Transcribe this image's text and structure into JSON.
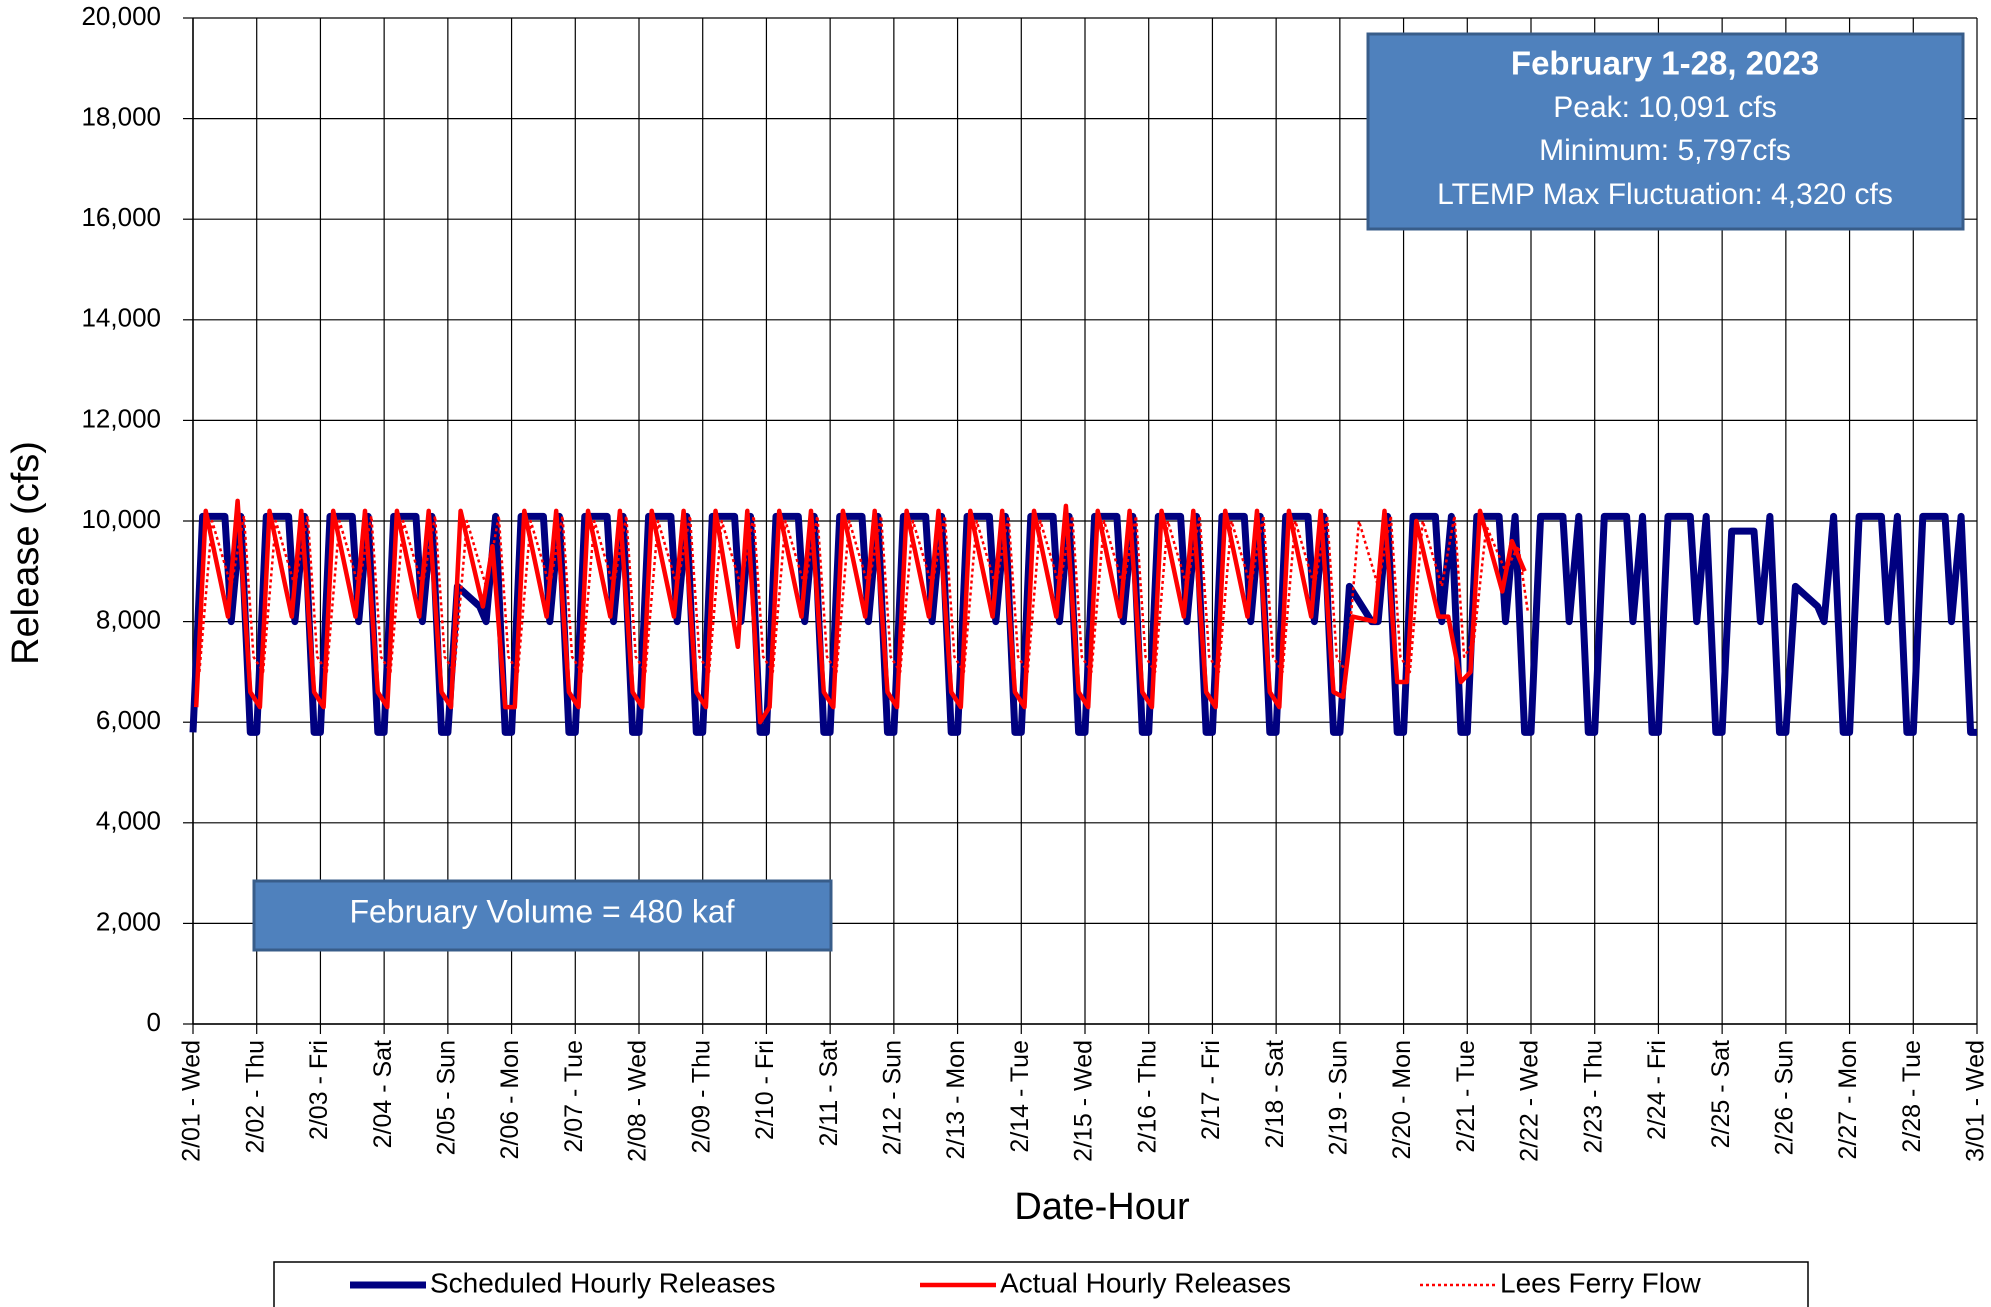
{
  "chart_data": {
    "type": "line",
    "y_label": "Release (cfs)",
    "x_label": "Date-Hour",
    "annotations": [
      "February 1-28, 2023",
      "Peak: 10,091 cfs",
      "Minimum: 5,797cfs",
      "LTEMP Max Fluctuation: 4,320 cfs",
      "February Volume = 480 kaf"
    ],
    "xlim": [
      0,
      28
    ],
    "ylim": [
      0,
      20000
    ],
    "grid": true,
    "xticks": [
      {
        "value": 0,
        "label": "2/01 - Wed"
      },
      {
        "value": 1,
        "label": "2/02 - Thu"
      },
      {
        "value": 2,
        "label": "2/03 - Fri"
      },
      {
        "value": 3,
        "label": "2/04 - Sat"
      },
      {
        "value": 4,
        "label": "2/05 - Sun"
      },
      {
        "value": 5,
        "label": "2/06 - Mon"
      },
      {
        "value": 6,
        "label": "2/07 - Tue"
      },
      {
        "value": 7,
        "label": "2/08 - Wed"
      },
      {
        "value": 8,
        "label": "2/09 - Thu"
      },
      {
        "value": 9,
        "label": "2/10 - Fri"
      },
      {
        "value": 10,
        "label": "2/11 - Sat"
      },
      {
        "value": 11,
        "label": "2/12 - Sun"
      },
      {
        "value": 12,
        "label": "2/13 - Mon"
      },
      {
        "value": 13,
        "label": "2/14 - Tue"
      },
      {
        "value": 14,
        "label": "2/15 - Wed"
      },
      {
        "value": 15,
        "label": "2/16 - Thu"
      },
      {
        "value": 16,
        "label": "2/17 - Fri"
      },
      {
        "value": 17,
        "label": "2/18 - Sat"
      },
      {
        "value": 18,
        "label": "2/19 - Sun"
      },
      {
        "value": 19,
        "label": "2/20 - Mon"
      },
      {
        "value": 20,
        "label": "2/21 - Tue"
      },
      {
        "value": 21,
        "label": "2/22 - Wed"
      },
      {
        "value": 22,
        "label": "2/23 - Thu"
      },
      {
        "value": 23,
        "label": "2/24 - Fri"
      },
      {
        "value": 24,
        "label": "2/25 - Sat"
      },
      {
        "value": 25,
        "label": "2/26 - Sun"
      },
      {
        "value": 26,
        "label": "2/27 - Mon"
      },
      {
        "value": 27,
        "label": "2/28 - Tue"
      },
      {
        "value": 28,
        "label": "3/01 - Wed"
      }
    ],
    "yticks": [
      0,
      {
        "value": 2000,
        "label": "2,000"
      },
      {
        "value": 4000,
        "label": "4,000"
      },
      {
        "value": 6000,
        "label": "6,000"
      },
      {
        "value": 8000,
        "label": "8,000"
      },
      {
        "value": 10000,
        "label": "10,000"
      },
      {
        "value": 12000,
        "label": "12,000"
      },
      {
        "value": 14000,
        "label": "14,000"
      },
      {
        "value": 16000,
        "label": "16,000"
      },
      {
        "value": 18000,
        "label": "18,000"
      },
      {
        "value": 20000,
        "label": "20,000"
      }
    ],
    "series": [
      {
        "name": "Scheduled Hourly Releases",
        "color": "#000080",
        "style": "solid",
        "x": [
          0,
          0.15,
          0.5,
          0.6,
          0.75,
          0.9,
          1,
          1.15,
          1.5,
          1.6,
          1.75,
          1.9,
          2,
          2.15,
          2.5,
          2.6,
          2.75,
          2.9,
          3,
          3.15,
          3.5,
          3.6,
          3.75,
          3.9,
          4,
          4.15,
          4.5,
          4.6,
          4.75,
          4.9,
          5,
          5.15,
          5.5,
          5.6,
          5.75,
          5.9,
          6,
          6.15,
          6.5,
          6.6,
          6.75,
          6.9,
          7,
          7.15,
          7.5,
          7.6,
          7.75,
          7.9,
          8,
          8.15,
          8.5,
          8.6,
          8.75,
          8.9,
          9,
          9.15,
          9.5,
          9.6,
          9.75,
          9.9,
          10,
          10.15,
          10.5,
          10.6,
          10.75,
          10.9,
          11,
          11.15,
          11.5,
          11.6,
          11.75,
          11.9,
          12,
          12.15,
          12.5,
          12.6,
          12.75,
          12.9,
          13,
          13.15,
          13.5,
          13.6,
          13.75,
          13.9,
          14,
          14.15,
          14.5,
          14.6,
          14.75,
          14.9,
          15,
          15.15,
          15.5,
          15.6,
          15.75,
          15.9,
          16,
          16.15,
          16.5,
          16.6,
          16.75,
          16.9,
          17,
          17.15,
          17.5,
          17.6,
          17.75,
          17.9,
          18,
          18.15,
          18.5,
          18.6,
          18.75,
          18.9,
          19,
          19.15,
          19.5,
          19.6,
          19.75,
          19.9,
          20,
          20.15,
          20.5,
          20.6,
          20.75,
          20.9,
          21,
          21.15,
          21.5,
          21.6,
          21.75,
          21.9,
          22,
          22.15,
          22.5,
          22.6,
          22.75,
          22.9,
          23,
          23.15,
          23.5,
          23.6,
          23.75,
          23.9,
          24,
          24.15,
          24.5,
          24.6,
          24.75,
          24.9,
          25,
          25.15,
          25.5,
          25.6,
          25.75,
          25.9,
          26,
          26.15,
          26.5,
          26.6,
          26.75,
          26.9,
          27,
          27.15,
          27.5,
          27.6,
          27.75,
          27.9,
          28
        ],
        "values": [
          5797,
          10091,
          10091,
          8000,
          10091,
          5797,
          5797,
          10091,
          10091,
          8000,
          10091,
          5797,
          5797,
          10091,
          10091,
          8000,
          10091,
          5797,
          5797,
          10091,
          10091,
          8000,
          10091,
          5797,
          5797,
          8700,
          8300,
          8000,
          10091,
          5797,
          5797,
          10091,
          10091,
          8000,
          10091,
          5797,
          5797,
          10091,
          10091,
          8000,
          10091,
          5797,
          5797,
          10091,
          10091,
          8000,
          10091,
          5797,
          5797,
          10091,
          10091,
          8000,
          10091,
          5797,
          5797,
          10091,
          10091,
          8000,
          10091,
          5797,
          5797,
          10091,
          10091,
          8000,
          10091,
          5797,
          5797,
          10091,
          10091,
          8000,
          10091,
          5797,
          5797,
          10091,
          10091,
          8000,
          10091,
          5797,
          5797,
          10091,
          10091,
          8000,
          10091,
          5797,
          5797,
          10091,
          10091,
          8000,
          10091,
          5797,
          5797,
          10091,
          10091,
          8000,
          10091,
          5797,
          5797,
          10091,
          10091,
          8000,
          10091,
          5797,
          5797,
          10091,
          10091,
          8000,
          10091,
          5797,
          5797,
          8700,
          8000,
          8000,
          10091,
          5797,
          5797,
          10091,
          10091,
          8000,
          10091,
          5797,
          5797,
          10091,
          10091,
          8000,
          10091,
          5797,
          5797,
          10091,
          10091,
          8000,
          10091,
          5797,
          5797,
          10091,
          10091,
          8000,
          10091,
          5797,
          5797,
          10091,
          10091,
          8000,
          10091,
          5797,
          5797,
          9800,
          9800,
          8000,
          10091,
          5797,
          5797,
          8700,
          8300,
          8000,
          10091,
          5797,
          5797,
          10091,
          10091,
          8000,
          10091,
          5797,
          5797,
          10091,
          10091,
          8000,
          10091,
          5797,
          5797
        ]
      },
      {
        "name": "Actual Hourly Releases",
        "color": "#ff0000",
        "style": "solid",
        "x": [
          0.05,
          0.2,
          0.55,
          0.7,
          0.9,
          1.05,
          1.2,
          1.55,
          1.7,
          1.9,
          2.05,
          2.2,
          2.55,
          2.7,
          2.9,
          3.05,
          3.2,
          3.55,
          3.7,
          3.9,
          4.05,
          4.2,
          4.55,
          4.7,
          4.9,
          5.05,
          5.2,
          5.55,
          5.7,
          5.9,
          6.05,
          6.2,
          6.55,
          6.7,
          6.9,
          7.05,
          7.2,
          7.55,
          7.7,
          7.9,
          8.05,
          8.2,
          8.55,
          8.7,
          8.9,
          9.05,
          9.2,
          9.55,
          9.7,
          9.9,
          10.05,
          10.2,
          10.55,
          10.7,
          10.9,
          11.05,
          11.2,
          11.55,
          11.7,
          11.9,
          12.05,
          12.2,
          12.55,
          12.7,
          12.9,
          13.05,
          13.2,
          13.55,
          13.7,
          13.9,
          14.05,
          14.2,
          14.55,
          14.7,
          14.9,
          15.05,
          15.2,
          15.55,
          15.7,
          15.9,
          16.05,
          16.2,
          16.55,
          16.7,
          16.9,
          17.05,
          17.2,
          17.55,
          17.7,
          17.9,
          18.05,
          18.2,
          18.55,
          18.7,
          18.9,
          19.05,
          19.2,
          19.55,
          19.7,
          19.9,
          20.05,
          20.2,
          20.55,
          20.7,
          20.9
        ],
        "values": [
          6300,
          10200,
          8100,
          10400,
          6600,
          6300,
          10200,
          8100,
          10200,
          6600,
          6300,
          10200,
          8100,
          10200,
          6600,
          6300,
          10200,
          8100,
          10200,
          6600,
          6300,
          10200,
          8300,
          9500,
          6300,
          6300,
          10200,
          8100,
          10200,
          6600,
          6300,
          10200,
          8100,
          10200,
          6600,
          6300,
          10200,
          8100,
          10200,
          6600,
          6300,
          10200,
          7500,
          10200,
          6000,
          6300,
          10200,
          8100,
          10200,
          6600,
          6300,
          10200,
          8100,
          10200,
          6600,
          6300,
          10200,
          8100,
          10200,
          6600,
          6300,
          10200,
          8100,
          10200,
          6600,
          6300,
          10200,
          8100,
          10300,
          6600,
          6300,
          10200,
          8100,
          10200,
          6600,
          6300,
          10200,
          8100,
          10200,
          6600,
          6300,
          10200,
          8100,
          10200,
          6600,
          6300,
          10200,
          8100,
          10200,
          6600,
          6500,
          8100,
          8000,
          10200,
          6800,
          6800,
          10000,
          8100,
          8100,
          6800,
          7000,
          10200,
          8600,
          9600,
          9000
        ]
      },
      {
        "name": "Lees Ferry Flow",
        "color": "#ff0000",
        "style": "dotted",
        "x": [
          0.1,
          0.3,
          0.6,
          0.8,
          0.95,
          1.1,
          1.3,
          1.6,
          1.8,
          1.95,
          2.1,
          2.3,
          2.6,
          2.8,
          2.95,
          3.1,
          3.3,
          3.6,
          3.8,
          3.95,
          4.1,
          4.3,
          4.6,
          4.8,
          4.95,
          5.1,
          5.3,
          5.6,
          5.8,
          5.95,
          6.1,
          6.3,
          6.6,
          6.8,
          6.95,
          7.1,
          7.3,
          7.6,
          7.8,
          7.95,
          8.1,
          8.3,
          8.6,
          8.8,
          8.95,
          9.1,
          9.3,
          9.6,
          9.8,
          9.95,
          10.1,
          10.3,
          10.6,
          10.8,
          10.95,
          11.1,
          11.3,
          11.6,
          11.8,
          11.95,
          12.1,
          12.3,
          12.6,
          12.8,
          12.95,
          13.1,
          13.3,
          13.6,
          13.8,
          13.95,
          14.1,
          14.3,
          14.6,
          14.8,
          14.95,
          15.1,
          15.3,
          15.6,
          15.8,
          15.95,
          16.1,
          16.3,
          16.6,
          16.8,
          16.95,
          17.1,
          17.3,
          17.6,
          17.8,
          17.95,
          18.1,
          18.3,
          18.6,
          18.8,
          18.95,
          19.1,
          19.3,
          19.6,
          19.8,
          19.95,
          20.1,
          20.3,
          20.6,
          20.8,
          20.95
        ],
        "values": [
          7000,
          10000,
          8700,
          10100,
          7300,
          7000,
          10000,
          8700,
          10100,
          7300,
          7000,
          10000,
          8700,
          10100,
          7300,
          7000,
          10000,
          8700,
          10100,
          7300,
          7000,
          10000,
          8700,
          10100,
          7300,
          7000,
          10000,
          8700,
          10100,
          7300,
          7000,
          10000,
          8700,
          10100,
          7300,
          7000,
          10000,
          8700,
          10100,
          7300,
          7000,
          10000,
          8700,
          10100,
          7300,
          7000,
          10000,
          8700,
          10100,
          7300,
          7000,
          10000,
          8700,
          10100,
          7300,
          7000,
          10000,
          8700,
          10100,
          7300,
          7000,
          10000,
          8700,
          10100,
          7300,
          7000,
          10000,
          8700,
          10100,
          7300,
          7000,
          10000,
          8700,
          10100,
          7300,
          7000,
          10000,
          8700,
          10100,
          7300,
          7000,
          10000,
          8700,
          10100,
          7300,
          7000,
          10000,
          8700,
          10100,
          7300,
          7000,
          10000,
          8700,
          10100,
          7300,
          7000,
          10000,
          8700,
          10100,
          7300,
          7600,
          9900,
          9000,
          9500,
          8200
        ]
      }
    ]
  }
}
